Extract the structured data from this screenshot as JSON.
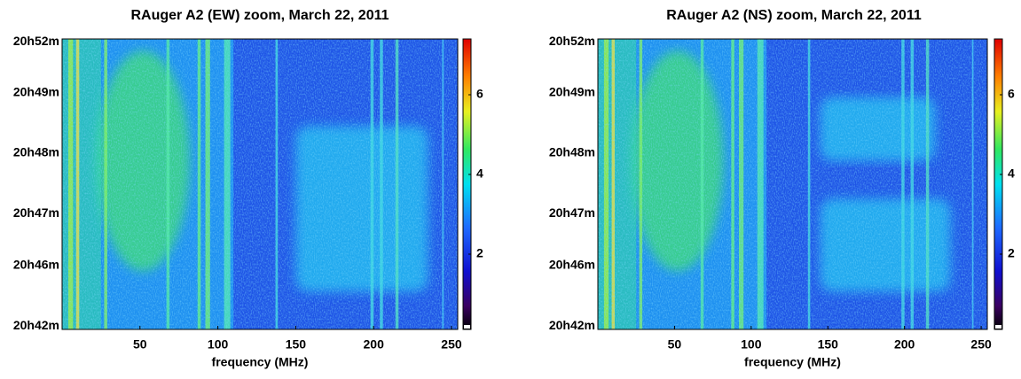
{
  "chart_data": [
    {
      "type": "heatmap",
      "title": "RAuger A2 (EW) zoom, March 22, 2011",
      "xlabel": "frequency (MHz)",
      "xlim": [
        0,
        254
      ],
      "xticks": [
        50,
        100,
        150,
        200,
        250
      ],
      "yticklabels": [
        "20h52m",
        "20h49m",
        "20h48m",
        "20h47m",
        "20h46m",
        "20h42m"
      ],
      "clim": [
        0,
        7.4
      ],
      "cticks": [
        2,
        4,
        6
      ]
    },
    {
      "type": "heatmap",
      "title": "RAuger A2 (NS) zoom, March 22, 2011",
      "xlabel": "frequency (MHz)",
      "xlim": [
        0,
        254
      ],
      "xticks": [
        50,
        100,
        150,
        200,
        250
      ],
      "yticklabels": [
        "20h52m",
        "20h49m",
        "20h48m",
        "20h47m",
        "20h46m",
        "20h42m"
      ],
      "clim": [
        0,
        7.4
      ],
      "cticks": [
        2,
        4,
        6
      ]
    }
  ]
}
